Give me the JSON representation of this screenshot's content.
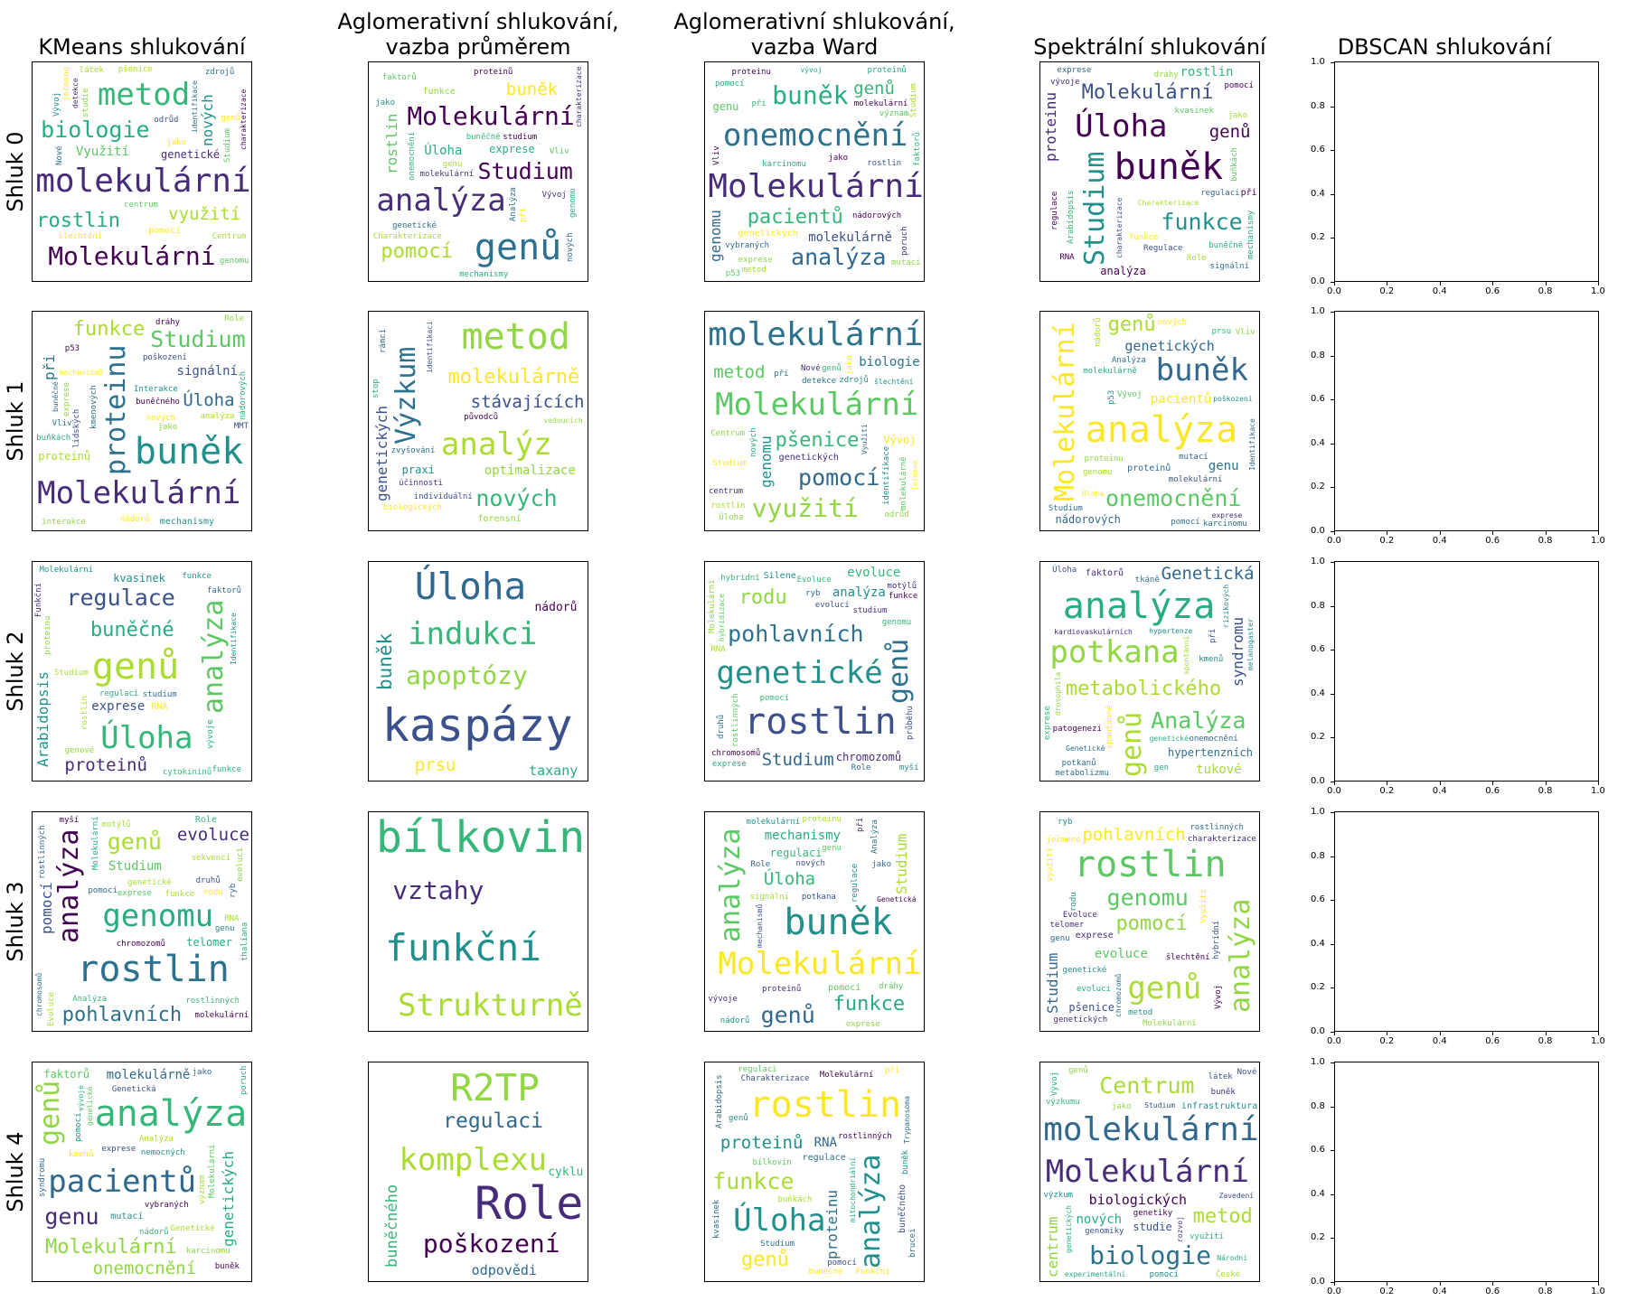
{
  "chart_data": {
    "type": "wordcloud-grid",
    "columns": [
      "KMeans shlukování",
      "Aglomerativní shlukování,\nvazba průměrem",
      "Aglomerativní shlukování,\nvazba Ward",
      "Spektrální shlukování",
      "DBSCAN shlukování"
    ],
    "rows": [
      "Shluk 0",
      "Shluk 1",
      "Shluk 2",
      "Shluk 3",
      "Shluk 4"
    ],
    "empty_axes": {
      "column": 4,
      "xticks": [
        "0.0",
        "0.2",
        "0.4",
        "0.6",
        "0.8",
        "1.0"
      ],
      "yticks": [
        "0.0",
        "0.2",
        "0.4",
        "0.6",
        "0.8",
        "1.0"
      ],
      "xlim": [
        0,
        1
      ],
      "ylim": [
        0,
        1
      ]
    },
    "clouds": [
      [
        [
          "molekulární",
          "metod",
          "Molekulární",
          "biologie",
          "rostlin",
          "využití",
          "nových",
          "Využití",
          "genetické",
          "pomocí",
          "Vývoj",
          "Centrum",
          "pšenice",
          "zdrojů",
          "Nové",
          "jako",
          "odrůd",
          "genů",
          "ječmene",
          "detekce",
          "šlechtění",
          "identifikace",
          "Studium",
          "Charakterizace",
          "centrum",
          "genomu",
          "studie",
          "látek",
          "genetických",
          "charakterizace"
        ],
        [
          "genů",
          "analýza",
          "Molekulární",
          "Studium",
          "pomocí",
          "buněk",
          "rostlin",
          "Úloha",
          "exprese",
          "funkce",
          "při",
          "proteinů",
          "genu",
          "molekulární",
          "genomu",
          "buněčné",
          "jako",
          "Vývoj",
          "nových",
          "Vliv",
          "faktorů",
          "Charakterizace",
          "Analýza",
          "genetické",
          "mechanismy",
          "studium",
          "onemocnění",
          "charakterizace"
        ],
        [
          "Molekulární",
          "onemocnění",
          "buněk",
          "analýza",
          "pacientů",
          "genů",
          "genomu",
          "molekulárně",
          "genu",
          "genetických",
          "Studium",
          "exprese",
          "pomocí",
          "při",
          "Vliv",
          "molekulární",
          "mutací",
          "nádorových",
          "poruch",
          "jako",
          "karcinomu",
          "význam",
          "vývoj",
          "proteinu",
          "vybraných",
          "metod",
          "faktorů",
          "p53",
          "rostlin",
          "proteinů"
        ],
        [
          "buněk",
          "Úloha",
          "Studium",
          "funkce",
          "Molekulární",
          "genů",
          "proteinu",
          "rostlin",
          "analýza",
          "při",
          "regulace",
          "jako",
          "regulaci",
          "buněčné",
          "Arabidopsis",
          "exprese",
          "Role",
          "dráhy",
          "mechanismy",
          "charakterizace",
          "pomocí",
          "signální",
          "Charakterizace",
          "Regulace",
          "RNA",
          "kvasinek",
          "buňkách",
          "vývoje",
          "funkce"
        ]
      ],
      [
        [
          "buněk",
          "Molekulární",
          "proteinu",
          "Studium",
          "funkce",
          "Úloha",
          "při",
          "signální",
          "proteinů",
          "mechanismy",
          "lidských",
          "jako",
          "nádorů",
          "buněčného",
          "nádorových",
          "dráhy",
          "interakce",
          "Interakce",
          "exprese",
          "Role",
          "p53",
          "buňkách",
          "kmenových",
          "buněčné",
          "poškození",
          "nových",
          "mechanismů",
          "analýza",
          "Vliv",
          "MMT"
        ],
        [
          "metod",
          "analýz",
          "Výzkum",
          "nových",
          "molekulárně",
          "stávajících",
          "genetických",
          "optimalizace",
          "praxi",
          "forensní",
          "rámci",
          "identifikaci",
          "individuální",
          "účinnosti",
          "vedoucích",
          "původců",
          "biologických",
          "zvyšování",
          "stop"
        ],
        [
          "molekulární",
          "Molekulární",
          "využití",
          "pomocí",
          "pšenice",
          "metod",
          "genomu",
          "biologie",
          "Vývoj",
          "genetických",
          "identifikace",
          "zdrojů",
          "Studium",
          "ječmene",
          "jako",
          "odrůd",
          "detekce",
          "Centrum",
          "molekulárně",
          "Využití",
          "šlechtění",
          "genů",
          "nových",
          "Nové",
          "při",
          "Úloha",
          "infrastruktura",
          "centrum",
          "rostlin",
          "charakterizace"
        ],
        [
          "analýza",
          "buněk",
          "Molekulární",
          "onemocnění",
          "genů",
          "genetických",
          "pacientů",
          "genu",
          "nádorových",
          "proteinů",
          "p53",
          "pomocí",
          "proteinu",
          "mutací",
          "nádorů",
          "karcinomu",
          "molekulárně",
          "Vliv",
          "poškození",
          "Analýza",
          "Studium",
          "Vývoj",
          "exprese",
          "prsu",
          "nových",
          "Identifikace",
          "Úloha",
          "molekulární",
          "genomu"
        ]
      ],
      [
        [
          "genů",
          "Úloha",
          "analýza",
          "regulace",
          "buněčné",
          "proteinů",
          "Arabidopsis",
          "exprese",
          "kvasinek",
          "RNA",
          "rostlin",
          "funkce",
          "regulaci",
          "Studium",
          "proteinu",
          "cytokininů",
          "Molekulární",
          "faktorů",
          "Funkční",
          "genové",
          "Identifikace",
          "studium",
          "vývoje",
          "funkce"
        ],
        [
          "kaspázy",
          "Úloha",
          "indukci",
          "apoptózy",
          "buněk",
          "prsu",
          "taxany",
          "nádorů"
        ],
        [
          "rostlin",
          "genetické",
          "genů",
          "pohlavních",
          "rodu",
          "Studium",
          "analýza",
          "evoluce",
          "chromozomů",
          "Silene",
          "druhů",
          "hybridní",
          "Evoluce",
          "evoluci",
          "rostlinných",
          "motýlů",
          "pomocí",
          "myší",
          "Molekulární",
          "exprese",
          "genomu",
          "studium",
          "průběhu",
          "Role",
          "RNA",
          "ryb",
          "hybridizace",
          "chromosomů",
          "funkce"
        ],
        [
          "analýza",
          "potkana",
          "genů",
          "Analýza",
          "metabolického",
          "Genetická",
          "syndromu",
          "tukové",
          "hypertenzních",
          "faktorů",
          "spontánně",
          "potkanů",
          "metabolizmu",
          "patogenezi",
          "exprese",
          "kmenů",
          "onemocnění",
          "rizikových",
          "Genetické",
          "kardiovaskulárních",
          "hypertenze",
          "Úloha",
          "při",
          "drosophila",
          "tkáně",
          "spontánní",
          "genetické",
          "melanogaster",
          "gen"
        ]
      ],
      [
        [
          "rostlin",
          "genomu",
          "analýza",
          "genů",
          "pohlavních",
          "evoluce",
          "pomocí",
          "Studium",
          "telomer",
          "Role",
          "evoluci",
          "chromozomů",
          "druhů",
          "funkce",
          "Molekulární",
          "genetické",
          "rodu",
          "sekvencí",
          "ryb",
          "exprese",
          "rostlinných",
          "motýlů",
          "Evoluce",
          "myší",
          "Analýza",
          "chromosomů",
          "thaliana",
          "RNA",
          "molekulární",
          "genu",
          "rostlinných",
          "pomocí"
        ],
        [
          "bílkovin",
          "funkční",
          "Strukturně",
          "vztahy"
        ],
        [
          "buněk",
          "Molekulární",
          "analýza",
          "genů",
          "funkce",
          "Úloha",
          "Studium",
          "mechanismy",
          "regulaci",
          "pomocí",
          "regulace",
          "proteinů",
          "Role",
          "vývoje",
          "při",
          "genu",
          "jako",
          "signální",
          "Analýza",
          "nových",
          "exprese",
          "proteinu",
          "Genetická",
          "dráhy",
          "molekulární",
          "potkana",
          "charakterizace",
          "mechanismů",
          "signalizace",
          "nádorů"
        ],
        [
          "rostlin",
          "genů",
          "analýza",
          "genomu",
          "pomocí",
          "pohlavních",
          "Studium",
          "evoluce",
          "pšenice",
          "exprese",
          "využití",
          "rostlinných",
          "Molekulární",
          "genetické",
          "rodu",
          "Evoluce",
          "telomer",
          "charakterizace",
          "Vývoj",
          "evoluci",
          "ječmene",
          "šlechtění",
          "hybridní",
          "metod",
          "genetických",
          "ryb",
          "Využití",
          "genu",
          "chromozomů"
        ]
      ],
      [
        [
          "analýza",
          "pacientů",
          "genů",
          "genu",
          "Molekulární",
          "onemocnění",
          "genetických",
          "molekulárně",
          "faktorů",
          "mutací",
          "pomocí",
          "vybraných",
          "exprese",
          "karcinomu",
          "poruch",
          "Genetické",
          "Analýza",
          "nádorů",
          "význam",
          "jako",
          "Genetická",
          "buněk",
          "syndromu",
          "kmenů",
          "nemocných",
          "vývoje",
          "Molekulární",
          "genetické"
        ],
        [
          "Role",
          "R2TP",
          "komplexu",
          "poškození",
          "regulaci",
          "buněčného",
          "odpovědi",
          "cyklu"
        ],
        [
          "rostlin",
          "Úloha",
          "analýza",
          "funkce",
          "genů",
          "proteinů",
          "proteinu",
          "RNA",
          "buněčného",
          "regulace",
          "Arabidopsis",
          "buněčné",
          "Molekulární",
          "Charakterizace",
          "kvasinek",
          "bílkovin",
          "mitochondriální",
          "buňkách",
          "brucei",
          "rostlinných",
          "regulaci",
          "pomocí",
          "buněk",
          "Funkční",
          "při",
          "Studium",
          "Trypanosoma",
          "genů"
        ],
        [
          "molekulární",
          "Molekulární",
          "biologie",
          "Centrum",
          "metod",
          "biologických",
          "centrum",
          "nových",
          "studie",
          "infrastruktura",
          "Vývoj",
          "jako",
          "pomocí",
          "buněk",
          "Národní",
          "látek",
          "genomiky",
          "výzkum",
          "Zavedení",
          "využití",
          "České",
          "genetiky",
          "Studium",
          "výzkumu",
          "Nové",
          "experimentální",
          "genetických",
          "genů",
          "biologie",
          "rozvoj"
        ]
      ]
    ]
  }
}
